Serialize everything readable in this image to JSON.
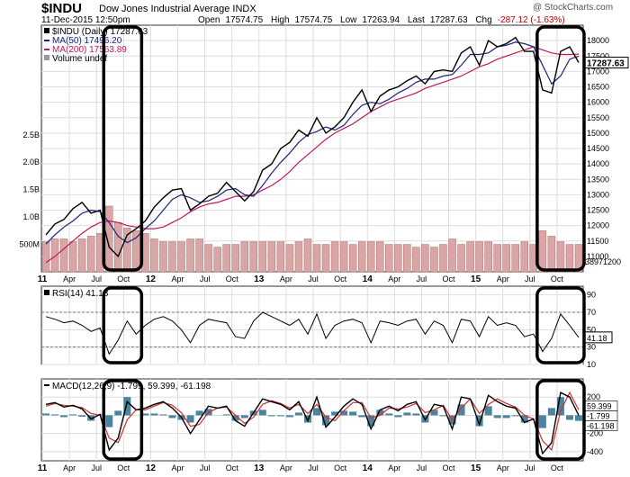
{
  "header": {
    "symbol": "$INDU",
    "description": "Dow Jones Industrial Average  INDX",
    "credit": "@ StockCharts.com",
    "datetime": "11-Dec-2015 12:50pm",
    "open_label": "Open",
    "open": "17574.75",
    "high_label": "High",
    "high": "17574.75",
    "low_label": "Low",
    "low": "17263.94",
    "last_label": "Last",
    "last": "17287.63",
    "chg_label": "Chg",
    "chg": "-287.12 (-1.63%)"
  },
  "colors": {
    "price": "#000000",
    "ma50": "#1a237e",
    "ma200": "#c2185b",
    "volume": "#d9a5a5",
    "macd_hist": "#2a6f8f",
    "macd_signal": "#d32f2f",
    "highlight_box": "#000000",
    "grid": "#dddddd"
  },
  "chart_data": [
    {
      "type": "line",
      "panel": "price",
      "legend": [
        {
          "label": "$INDU (Daily) 17287.63",
          "marker": "square-icon"
        },
        {
          "label": "MA(50) 17496.20",
          "marker": "line-icon"
        },
        {
          "label": "MA(200) 17563.89",
          "marker": "line-icon"
        },
        {
          "label": "Volume undef",
          "marker": "square-icon"
        }
      ],
      "legend_position": "top-left",
      "x": [
        "2011-01",
        "2011-02",
        "2011-03",
        "2011-04",
        "2011-05",
        "2011-06",
        "2011-07",
        "2011-08",
        "2011-09",
        "2011-10",
        "2011-11",
        "2011-12",
        "2012-01",
        "2012-02",
        "2012-03",
        "2012-04",
        "2012-05",
        "2012-06",
        "2012-07",
        "2012-08",
        "2012-09",
        "2012-10",
        "2012-11",
        "2012-12",
        "2013-01",
        "2013-02",
        "2013-03",
        "2013-04",
        "2013-05",
        "2013-06",
        "2013-07",
        "2013-08",
        "2013-09",
        "2013-10",
        "2013-11",
        "2013-12",
        "2014-01",
        "2014-02",
        "2014-03",
        "2014-04",
        "2014-05",
        "2014-06",
        "2014-07",
        "2014-08",
        "2014-09",
        "2014-10",
        "2014-11",
        "2014-12",
        "2015-01",
        "2015-02",
        "2015-03",
        "2015-04",
        "2015-05",
        "2015-06",
        "2015-07",
        "2015-08",
        "2015-09",
        "2015-10",
        "2015-11",
        "2015-12"
      ],
      "series": [
        {
          "name": "$INDU (Daily) 17287.63",
          "values": [
            11700,
            12050,
            12200,
            12550,
            12750,
            12400,
            12500,
            11300,
            11000,
            11700,
            11900,
            12150,
            12600,
            12900,
            13150,
            13200,
            12500,
            12700,
            12950,
            13050,
            13400,
            13100,
            12800,
            13100,
            13800,
            14000,
            14500,
            14700,
            15100,
            14900,
            15500,
            15000,
            15200,
            15500,
            16000,
            16400,
            15700,
            16200,
            16400,
            16500,
            16700,
            16850,
            16600,
            17000,
            17050,
            17000,
            17600,
            17800,
            17200,
            18000,
            17800,
            17900,
            18100,
            17650,
            17650,
            16400,
            16300,
            17650,
            17800,
            17287.63
          ]
        },
        {
          "name": "MA(50) 17496.20",
          "values": [
            11400,
            11700,
            11950,
            12150,
            12400,
            12500,
            12450,
            12100,
            11650,
            11450,
            11600,
            11900,
            12150,
            12500,
            12850,
            13000,
            12900,
            12750,
            12800,
            12950,
            13150,
            13200,
            13000,
            12950,
            13300,
            13700,
            14050,
            14350,
            14700,
            14950,
            15050,
            15200,
            15100,
            15250,
            15600,
            15900,
            16000,
            15950,
            16100,
            16300,
            16450,
            16650,
            16750,
            16750,
            16850,
            16900,
            17200,
            17550,
            17550,
            17600,
            17800,
            17850,
            17950,
            17900,
            17800,
            17200,
            16600,
            16850,
            17400,
            17496.2
          ]
        },
        {
          "name": "MA(200) 17563.89",
          "values": [
            10800,
            11000,
            11250,
            11500,
            11750,
            11950,
            12100,
            12150,
            12100,
            12000,
            11950,
            11900,
            11900,
            11950,
            12100,
            12250,
            12450,
            12600,
            12700,
            12750,
            12850,
            12950,
            12950,
            13000,
            13150,
            13300,
            13500,
            13750,
            14050,
            14300,
            14550,
            14800,
            15000,
            15150,
            15300,
            15500,
            15700,
            15850,
            16000,
            16100,
            16200,
            16300,
            16450,
            16550,
            16650,
            16750,
            16850,
            17000,
            17150,
            17250,
            17400,
            17500,
            17600,
            17700,
            17800,
            17700,
            17600,
            17550,
            17550,
            17563.89
          ]
        }
      ],
      "ylim": [
        10500,
        18500
      ],
      "yticks": [
        11000,
        11500,
        12000,
        12500,
        13000,
        13500,
        14000,
        14500,
        15000,
        15500,
        16000,
        16500,
        17000,
        17500,
        18000
      ],
      "ytick_labels": [
        "11000",
        "11500",
        "12000",
        "12500",
        "13000",
        "13500",
        "14000",
        "14500",
        "15000",
        "15500",
        "16000",
        "16500",
        "17000",
        "17500",
        "18000"
      ],
      "last_value_label": "17287.63",
      "ma_value_labels": [
        "17563.89",
        "17496.20"
      ],
      "volume": {
        "values": [
          0.55,
          0.6,
          0.6,
          0.55,
          0.6,
          0.65,
          0.7,
          1.2,
          0.9,
          0.8,
          0.75,
          0.7,
          0.6,
          0.55,
          0.55,
          0.55,
          0.6,
          0.6,
          0.5,
          0.45,
          0.5,
          0.5,
          0.55,
          0.55,
          0.55,
          0.55,
          0.55,
          0.5,
          0.55,
          0.6,
          0.5,
          0.5,
          0.55,
          0.55,
          0.5,
          0.55,
          0.55,
          0.55,
          0.5,
          0.5,
          0.5,
          0.45,
          0.5,
          0.45,
          0.5,
          0.6,
          0.5,
          0.55,
          0.55,
          0.55,
          0.5,
          0.5,
          0.5,
          0.55,
          0.5,
          0.75,
          0.65,
          0.55,
          0.5,
          0.5
        ],
        "ylim": [
          0,
          4.5
        ],
        "yticks": [
          0.5,
          1.0,
          1.5,
          2.0,
          2.5
        ],
        "ytick_labels": [
          "500M",
          "1.0B",
          "1.5B",
          "2.0B",
          "2.5B"
        ],
        "last_value_label": "38971200"
      },
      "highlight_months": [
        [
          7,
          10
        ],
        [
          55,
          59
        ]
      ],
      "grid": true
    },
    {
      "type": "line",
      "panel": "rsi",
      "legend": [
        {
          "label": "RSI(14) 41.18",
          "marker": "line-icon"
        }
      ],
      "legend_position": "top-left",
      "series": [
        {
          "name": "RSI(14) 41.18",
          "values": [
            65,
            62,
            58,
            60,
            55,
            48,
            52,
            22,
            38,
            60,
            45,
            55,
            62,
            65,
            60,
            50,
            35,
            55,
            62,
            60,
            58,
            42,
            40,
            60,
            70,
            65,
            60,
            55,
            62,
            45,
            68,
            40,
            55,
            60,
            62,
            58,
            35,
            60,
            58,
            55,
            60,
            62,
            45,
            60,
            55,
            35,
            62,
            60,
            42,
            65,
            55,
            58,
            55,
            42,
            45,
            25,
            40,
            68,
            55,
            41.18
          ]
        }
      ],
      "ylim": [
        10,
        100
      ],
      "yticks": [
        10,
        30,
        50,
        70,
        90
      ],
      "ytick_labels": [
        "10",
        "30",
        "50",
        "70",
        "90"
      ],
      "reference_lines": [
        30,
        70
      ],
      "last_value_label": "41.18",
      "highlight_months": [
        [
          7,
          10
        ],
        [
          55,
          59
        ]
      ],
      "grid": true
    },
    {
      "type": "line",
      "panel": "macd",
      "legend": [
        {
          "label": "MACD(12,26,9) -1.799, 59.399, -61.198",
          "marker": "line-icon"
        }
      ],
      "legend_position": "top-left",
      "series": [
        {
          "name": "MACD(12,26,9)",
          "values": [
            120,
            140,
            90,
            110,
            70,
            -40,
            10,
            -380,
            -250,
            150,
            60,
            80,
            120,
            150,
            80,
            -20,
            -200,
            -50,
            100,
            80,
            100,
            -60,
            -120,
            30,
            180,
            150,
            120,
            60,
            150,
            -60,
            200,
            -130,
            -20,
            100,
            180,
            120,
            -150,
            60,
            100,
            50,
            120,
            150,
            -50,
            120,
            100,
            -150,
            200,
            180,
            -100,
            220,
            150,
            100,
            80,
            -80,
            -40,
            -420,
            -300,
            250,
            200,
            -1.799
          ]
        },
        {
          "name": "Signal",
          "values": [
            100,
            130,
            110,
            100,
            85,
            20,
            0,
            -250,
            -300,
            -50,
            60,
            60,
            100,
            140,
            110,
            30,
            -120,
            -100,
            30,
            80,
            90,
            0,
            -90,
            -20,
            120,
            160,
            130,
            80,
            120,
            20,
            120,
            -20,
            -60,
            50,
            140,
            140,
            -30,
            0,
            80,
            70,
            90,
            130,
            30,
            60,
            110,
            -50,
            80,
            180,
            20,
            120,
            180,
            130,
            90,
            0,
            -40,
            -280,
            -380,
            50,
            250,
            59.399
          ]
        }
      ],
      "histogram": [
        20,
        10,
        -20,
        10,
        -15,
        -60,
        10,
        -130,
        50,
        200,
        0,
        20,
        20,
        10,
        -30,
        -50,
        -80,
        50,
        70,
        0,
        10,
        -60,
        -30,
        50,
        60,
        -10,
        -10,
        -20,
        30,
        -80,
        80,
        -110,
        40,
        50,
        40,
        -20,
        -120,
        60,
        20,
        -20,
        30,
        20,
        -80,
        60,
        -10,
        -100,
        120,
        0,
        -120,
        100,
        -30,
        -30,
        -10,
        -80,
        0,
        -140,
        80,
        200,
        -50,
        -61.198
      ],
      "ylim": [
        -500,
        400
      ],
      "yticks": [
        -400,
        -200,
        0,
        200
      ],
      "ytick_labels": [
        "-400",
        "-200",
        "0",
        "200"
      ],
      "value_labels": [
        "59.399",
        "-1.799",
        "-61.198"
      ],
      "highlight_months": [
        [
          7,
          10
        ],
        [
          55,
          59
        ]
      ],
      "grid": true
    }
  ],
  "x_axis": {
    "labels": [
      {
        "text": "11",
        "month": 0,
        "bold": true
      },
      {
        "text": "Apr",
        "month": 3
      },
      {
        "text": "Jul",
        "month": 6
      },
      {
        "text": "Oct",
        "month": 9
      },
      {
        "text": "12",
        "month": 12,
        "bold": true
      },
      {
        "text": "Apr",
        "month": 15
      },
      {
        "text": "Jul",
        "month": 18
      },
      {
        "text": "Oct",
        "month": 21
      },
      {
        "text": "13",
        "month": 24,
        "bold": true
      },
      {
        "text": "Apr",
        "month": 27
      },
      {
        "text": "Jul",
        "month": 30
      },
      {
        "text": "Oct",
        "month": 33
      },
      {
        "text": "14",
        "month": 36,
        "bold": true
      },
      {
        "text": "Apr",
        "month": 39
      },
      {
        "text": "Jul",
        "month": 42
      },
      {
        "text": "Oct",
        "month": 45
      },
      {
        "text": "15",
        "month": 48,
        "bold": true
      },
      {
        "text": "Apr",
        "month": 51
      },
      {
        "text": "Jul",
        "month": 54
      },
      {
        "text": "Oct",
        "month": 57
      }
    ]
  }
}
